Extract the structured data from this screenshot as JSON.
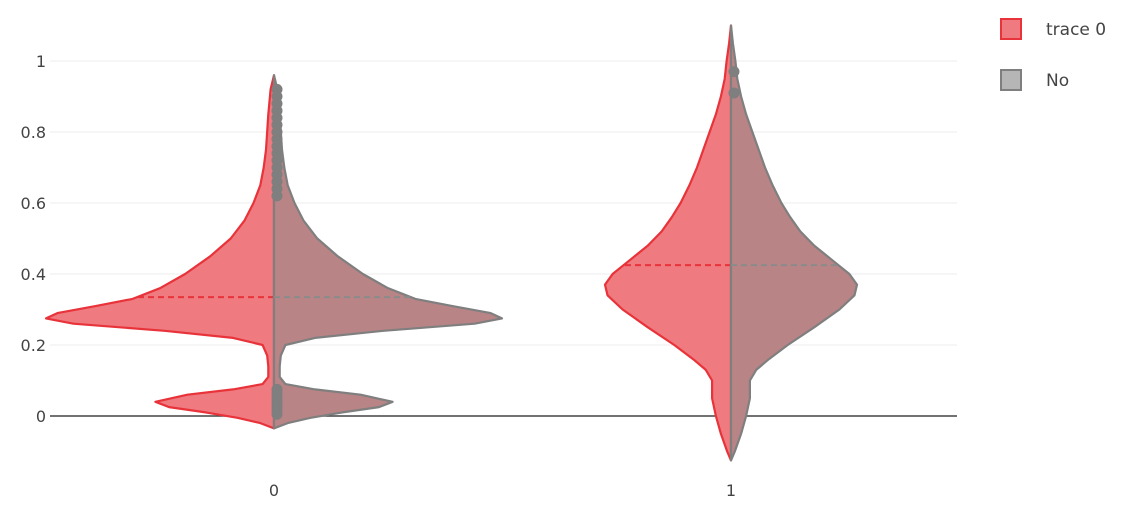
{
  "chart_data": {
    "type": "violin",
    "categories": [
      "0",
      "1"
    ],
    "ylim": [
      -0.13,
      1.1
    ],
    "yticks": [
      0,
      0.2,
      0.4,
      0.6,
      0.8,
      1
    ],
    "ytick_labels": [
      "0",
      "0.2",
      "0.4",
      "0.6",
      "0.8",
      "1"
    ],
    "grid": true,
    "legend_position": "top-right",
    "series": [
      {
        "name": "trace 0",
        "side": "negative",
        "color": "#e8333a",
        "fill": "#ef7a7f",
        "violins": [
          {
            "category": "0",
            "mean": 0.335,
            "profile": [
              [
                -0.035,
                0.0
              ],
              [
                -0.02,
                0.06
              ],
              [
                -0.005,
                0.16
              ],
              [
                0.01,
                0.3
              ],
              [
                0.025,
                0.46
              ],
              [
                0.04,
                0.52
              ],
              [
                0.06,
                0.38
              ],
              [
                0.075,
                0.18
              ],
              [
                0.09,
                0.05
              ],
              [
                0.11,
                0.025
              ],
              [
                0.14,
                0.025
              ],
              [
                0.17,
                0.03
              ],
              [
                0.2,
                0.05
              ],
              [
                0.22,
                0.18
              ],
              [
                0.24,
                0.48
              ],
              [
                0.26,
                0.88
              ],
              [
                0.275,
                1.0
              ],
              [
                0.29,
                0.95
              ],
              [
                0.31,
                0.78
              ],
              [
                0.33,
                0.62
              ],
              [
                0.36,
                0.5
              ],
              [
                0.4,
                0.39
              ],
              [
                0.45,
                0.28
              ],
              [
                0.5,
                0.19
              ],
              [
                0.55,
                0.13
              ],
              [
                0.6,
                0.09
              ],
              [
                0.65,
                0.06
              ],
              [
                0.7,
                0.045
              ],
              [
                0.75,
                0.035
              ],
              [
                0.85,
                0.025
              ],
              [
                0.92,
                0.015
              ],
              [
                0.96,
                0.0
              ]
            ]
          },
          {
            "category": "1",
            "mean": 0.425,
            "profile": [
              [
                -0.125,
                0.0
              ],
              [
                -0.1,
                0.03
              ],
              [
                -0.05,
                0.08
              ],
              [
                0.0,
                0.12
              ],
              [
                0.05,
                0.15
              ],
              [
                0.1,
                0.15
              ],
              [
                0.13,
                0.2
              ],
              [
                0.16,
                0.3
              ],
              [
                0.2,
                0.45
              ],
              [
                0.25,
                0.66
              ],
              [
                0.3,
                0.86
              ],
              [
                0.34,
                0.98
              ],
              [
                0.37,
                1.0
              ],
              [
                0.4,
                0.94
              ],
              [
                0.44,
                0.8
              ],
              [
                0.48,
                0.66
              ],
              [
                0.52,
                0.55
              ],
              [
                0.56,
                0.47
              ],
              [
                0.6,
                0.4
              ],
              [
                0.65,
                0.33
              ],
              [
                0.7,
                0.27
              ],
              [
                0.75,
                0.22
              ],
              [
                0.8,
                0.17
              ],
              [
                0.85,
                0.12
              ],
              [
                0.9,
                0.08
              ],
              [
                0.95,
                0.05
              ],
              [
                1.0,
                0.035
              ],
              [
                1.05,
                0.015
              ],
              [
                1.1,
                0.0
              ]
            ]
          }
        ]
      },
      {
        "name": "No",
        "side": "positive",
        "color": "#7f7f7f",
        "fill": "#b98486",
        "violins": [
          {
            "category": "0",
            "mean": 0.335,
            "profile": [
              [
                -0.035,
                0.0
              ],
              [
                -0.02,
                0.06
              ],
              [
                -0.005,
                0.16
              ],
              [
                0.01,
                0.3
              ],
              [
                0.025,
                0.46
              ],
              [
                0.04,
                0.52
              ],
              [
                0.06,
                0.38
              ],
              [
                0.075,
                0.18
              ],
              [
                0.09,
                0.05
              ],
              [
                0.11,
                0.025
              ],
              [
                0.14,
                0.025
              ],
              [
                0.17,
                0.03
              ],
              [
                0.2,
                0.05
              ],
              [
                0.22,
                0.18
              ],
              [
                0.24,
                0.48
              ],
              [
                0.26,
                0.88
              ],
              [
                0.275,
                1.0
              ],
              [
                0.29,
                0.95
              ],
              [
                0.31,
                0.78
              ],
              [
                0.33,
                0.62
              ],
              [
                0.36,
                0.5
              ],
              [
                0.4,
                0.39
              ],
              [
                0.45,
                0.28
              ],
              [
                0.5,
                0.19
              ],
              [
                0.55,
                0.13
              ],
              [
                0.6,
                0.09
              ],
              [
                0.65,
                0.06
              ],
              [
                0.7,
                0.045
              ],
              [
                0.75,
                0.035
              ],
              [
                0.85,
                0.025
              ],
              [
                0.92,
                0.015
              ],
              [
                0.96,
                0.0
              ]
            ],
            "outliers": [
              0.005,
              0.015,
              0.025,
              0.035,
              0.045,
              0.055,
              0.065,
              0.075,
              0.62,
              0.64,
              0.66,
              0.68,
              0.7,
              0.72,
              0.74,
              0.76,
              0.78,
              0.8,
              0.82,
              0.84,
              0.86,
              0.88,
              0.9,
              0.92
            ]
          },
          {
            "category": "1",
            "mean": 0.425,
            "profile": [
              [
                -0.125,
                0.0
              ],
              [
                -0.1,
                0.03
              ],
              [
                -0.05,
                0.08
              ],
              [
                0.0,
                0.12
              ],
              [
                0.05,
                0.15
              ],
              [
                0.1,
                0.15
              ],
              [
                0.13,
                0.2
              ],
              [
                0.16,
                0.3
              ],
              [
                0.2,
                0.45
              ],
              [
                0.25,
                0.66
              ],
              [
                0.3,
                0.86
              ],
              [
                0.34,
                0.98
              ],
              [
                0.37,
                1.0
              ],
              [
                0.4,
                0.94
              ],
              [
                0.44,
                0.8
              ],
              [
                0.48,
                0.66
              ],
              [
                0.52,
                0.55
              ],
              [
                0.56,
                0.47
              ],
              [
                0.6,
                0.4
              ],
              [
                0.65,
                0.33
              ],
              [
                0.7,
                0.27
              ],
              [
                0.75,
                0.22
              ],
              [
                0.8,
                0.17
              ],
              [
                0.85,
                0.12
              ],
              [
                0.9,
                0.08
              ],
              [
                0.95,
                0.05
              ],
              [
                1.0,
                0.035
              ],
              [
                1.05,
                0.015
              ],
              [
                1.1,
                0.0
              ]
            ],
            "outliers": [
              0.91,
              0.97
            ]
          }
        ]
      }
    ]
  },
  "legend": {
    "items": [
      {
        "label": "trace 0",
        "fill": "#ef7a7f",
        "stroke": "#e8333a"
      },
      {
        "label": "No",
        "fill": "#b6b6b6",
        "stroke": "#7f7f7f"
      }
    ]
  }
}
